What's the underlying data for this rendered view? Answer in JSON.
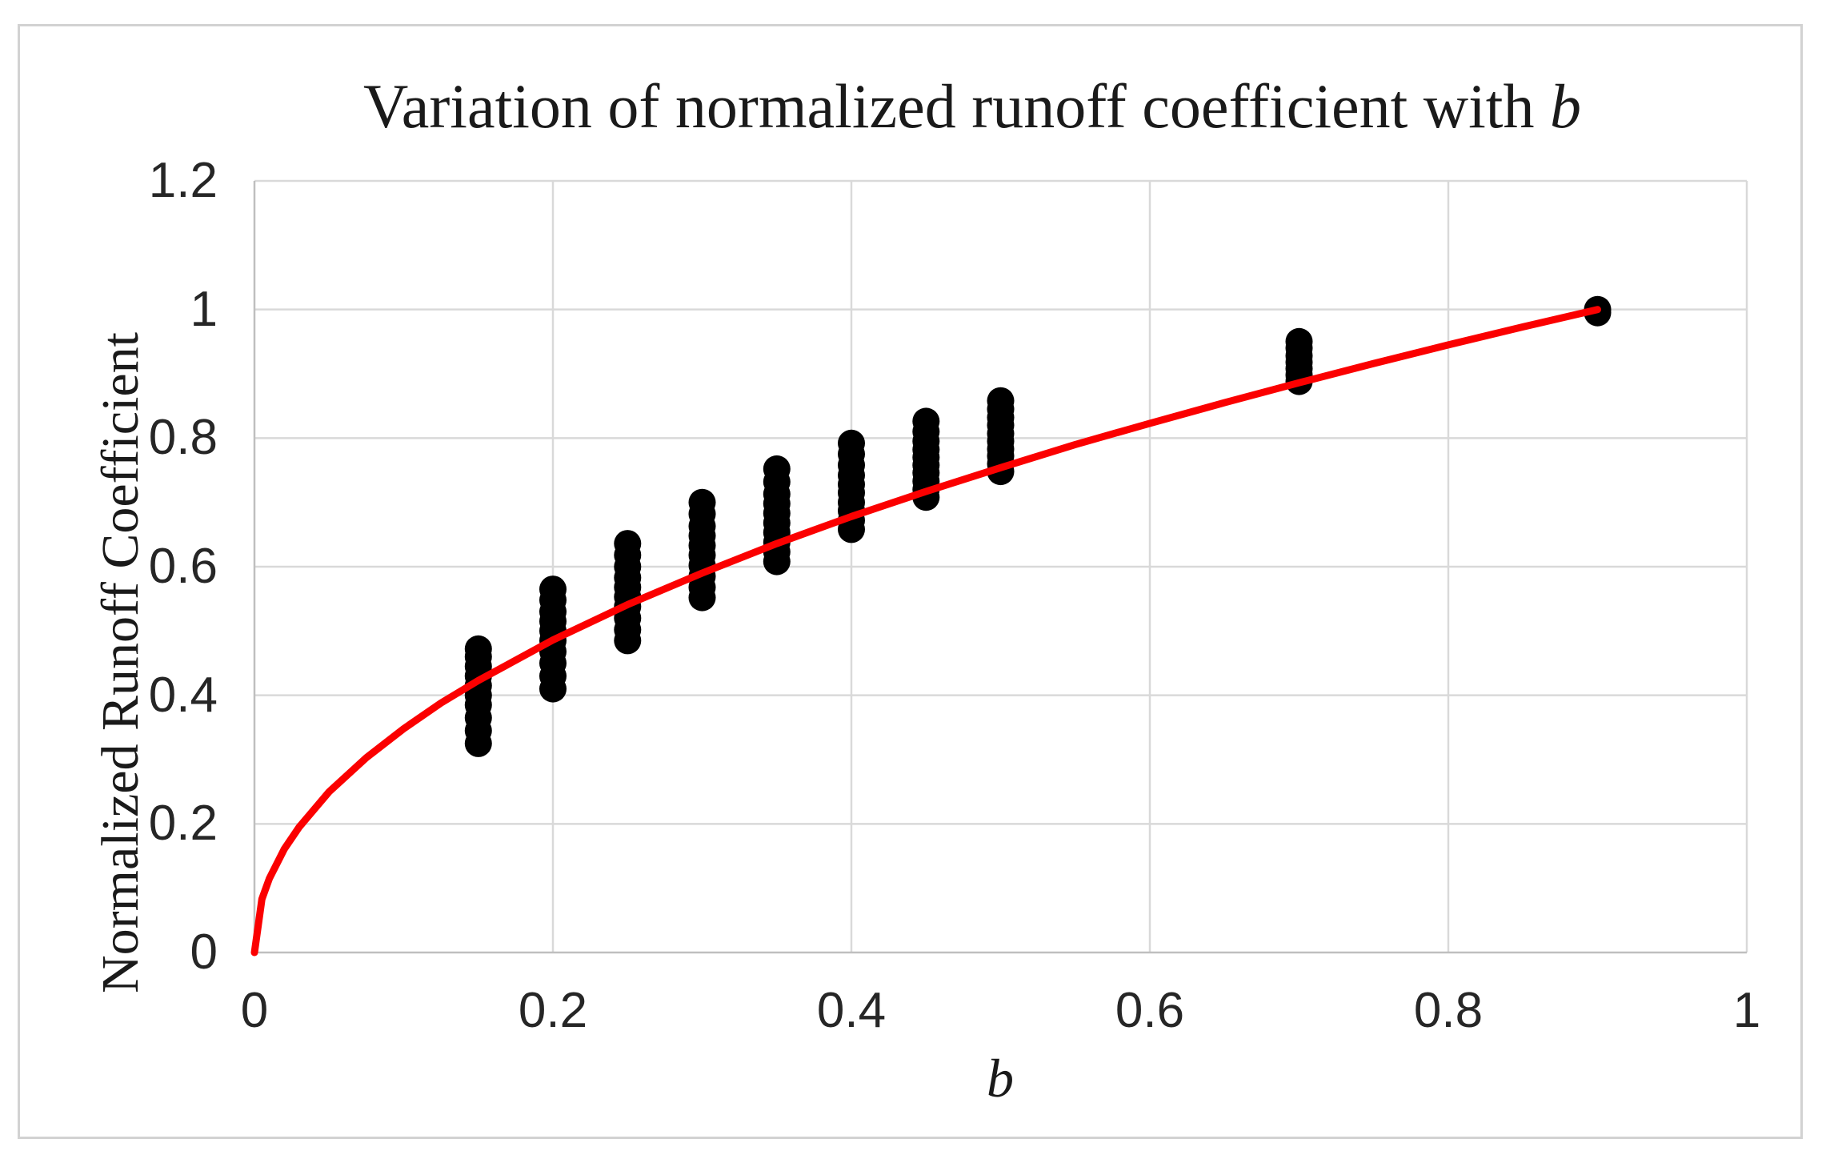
{
  "figure": {
    "title_prefix": "Variation of normalized runoff coefficient with ",
    "title_italic": "b",
    "x_axis_label": "b",
    "y_axis_label": "Normalized Runoff Coefficient"
  },
  "colors": {
    "curve": "#fb0000",
    "points": "#000000",
    "gridline": "#d9d9d9",
    "axis_line": "#bfbfbf",
    "frame_border": "#d2d2d2",
    "text": "#1a1a1a",
    "background": "#ffffff"
  },
  "chart_data": {
    "type": "scatter",
    "title": "Variation of normalized runoff coefficient with b",
    "xlabel": "b",
    "ylabel": "Normalized Runoff Coefficient",
    "xlim": [
      0,
      1
    ],
    "ylim": [
      0,
      1.2
    ],
    "grid": true,
    "legend": "none",
    "x_ticks": [
      "0",
      "0.2",
      "0.4",
      "0.6",
      "0.8",
      "1"
    ],
    "x_tick_values": [
      0,
      0.2,
      0.4,
      0.6,
      0.8,
      1
    ],
    "y_ticks": [
      "0",
      "0.2",
      "0.4",
      "0.6",
      "0.8",
      "1",
      "1.2"
    ],
    "y_tick_values": [
      0,
      0.2,
      0.4,
      0.6,
      0.8,
      1,
      1.2
    ],
    "series": [
      {
        "name": "observed-points",
        "type": "scatter",
        "marker": "circle",
        "clusters": [
          {
            "x": 0.15,
            "y": [
              0.325,
              0.345,
              0.365,
              0.385,
              0.4,
              0.415,
              0.43,
              0.445,
              0.46,
              0.472
            ]
          },
          {
            "x": 0.2,
            "y": [
              0.41,
              0.43,
              0.45,
              0.468,
              0.485,
              0.5,
              0.515,
              0.53,
              0.548,
              0.565
            ]
          },
          {
            "x": 0.25,
            "y": [
              0.485,
              0.502,
              0.52,
              0.538,
              0.553,
              0.568,
              0.583,
              0.6,
              0.618,
              0.636
            ]
          },
          {
            "x": 0.3,
            "y": [
              0.552,
              0.568,
              0.585,
              0.602,
              0.618,
              0.633,
              0.648,
              0.663,
              0.682,
              0.7
            ]
          },
          {
            "x": 0.35,
            "y": [
              0.608,
              0.623,
              0.638,
              0.653,
              0.668,
              0.683,
              0.698,
              0.713,
              0.732,
              0.752
            ]
          },
          {
            "x": 0.4,
            "y": [
              0.658,
              0.672,
              0.687,
              0.7,
              0.715,
              0.728,
              0.742,
              0.758,
              0.775,
              0.792
            ]
          },
          {
            "x": 0.45,
            "y": [
              0.708,
              0.72,
              0.733,
              0.746,
              0.758,
              0.77,
              0.782,
              0.795,
              0.81,
              0.826
            ]
          },
          {
            "x": 0.5,
            "y": [
              0.748,
              0.76,
              0.772,
              0.783,
              0.795,
              0.807,
              0.82,
              0.832,
              0.845,
              0.858
            ]
          },
          {
            "x": 0.7,
            "y": [
              0.888,
              0.898,
              0.908,
              0.918,
              0.928,
              0.94,
              0.95
            ]
          },
          {
            "x": 0.9,
            "y": [
              0.995,
              1.0
            ]
          }
        ]
      },
      {
        "name": "fitted-curve",
        "type": "line",
        "points": [
          [
            0,
            0
          ],
          [
            0.005,
            0.083
          ],
          [
            0.01,
            0.115
          ],
          [
            0.02,
            0.161
          ],
          [
            0.03,
            0.195
          ],
          [
            0.05,
            0.25
          ],
          [
            0.075,
            0.303
          ],
          [
            0.1,
            0.348
          ],
          [
            0.125,
            0.388
          ],
          [
            0.15,
            0.423
          ],
          [
            0.2,
            0.486
          ],
          [
            0.25,
            0.541
          ],
          [
            0.3,
            0.59
          ],
          [
            0.35,
            0.636
          ],
          [
            0.4,
            0.678
          ],
          [
            0.45,
            0.717
          ],
          [
            0.5,
            0.754
          ],
          [
            0.55,
            0.79
          ],
          [
            0.6,
            0.823
          ],
          [
            0.65,
            0.855
          ],
          [
            0.7,
            0.886
          ],
          [
            0.75,
            0.916
          ],
          [
            0.8,
            0.945
          ],
          [
            0.85,
            0.973
          ],
          [
            0.9,
            1.0
          ]
        ]
      }
    ]
  }
}
